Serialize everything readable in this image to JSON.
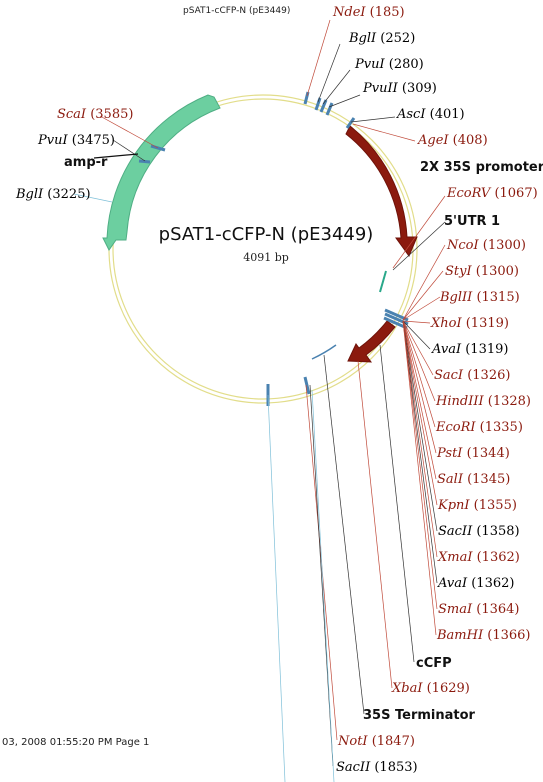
{
  "header": "pSAT1-cCFP-N (pE3449)",
  "plasmid": {
    "name": "pSAT1-cCFP-N (pE3449)",
    "size": "4091 bp"
  },
  "footer": "03, 2008 01:55:20 PM Page 1",
  "colors": {
    "promoter": "#8b1a0e",
    "amp": "#6ccfa0",
    "backbone": "#e8e49a",
    "unique": "#8b1a0e",
    "multi": "#000000",
    "site_tick": "#4a82b0"
  },
  "features": [
    "amp-r",
    "2X 35S promoter",
    "5'UTR 1",
    "cCFP",
    "35S Terminator"
  ],
  "sites": [
    {
      "name": "NdeI",
      "pos": "(185)",
      "unique": true
    },
    {
      "name": "BglI",
      "pos": "(252)",
      "unique": false
    },
    {
      "name": "PvuI",
      "pos": "(280)",
      "unique": false
    },
    {
      "name": "PvuII",
      "pos": "(309)",
      "unique": false
    },
    {
      "name": "AscI",
      "pos": "(401)",
      "unique": false
    },
    {
      "name": "AgeI",
      "pos": "(408)",
      "unique": true
    },
    {
      "name": "EcoRV",
      "pos": "(1067)",
      "unique": true
    },
    {
      "name": "NcoI",
      "pos": "(1300)",
      "unique": true
    },
    {
      "name": "StyI",
      "pos": "(1300)",
      "unique": true
    },
    {
      "name": "BglII",
      "pos": "(1315)",
      "unique": true
    },
    {
      "name": "XhoI",
      "pos": "(1319)",
      "unique": true
    },
    {
      "name": "AvaI",
      "pos": "(1319)",
      "unique": false
    },
    {
      "name": "SacI",
      "pos": "(1326)",
      "unique": true
    },
    {
      "name": "HindIII",
      "pos": "(1328)",
      "unique": true
    },
    {
      "name": "EcoRI",
      "pos": "(1335)",
      "unique": true
    },
    {
      "name": "PstI",
      "pos": "(1344)",
      "unique": true
    },
    {
      "name": "SalI",
      "pos": "(1345)",
      "unique": true
    },
    {
      "name": "KpnI",
      "pos": "(1355)",
      "unique": true
    },
    {
      "name": "SacII",
      "pos": "(1358)",
      "unique": false
    },
    {
      "name": "XmaI",
      "pos": "(1362)",
      "unique": true
    },
    {
      "name": "AvaI",
      "pos": "(1362)",
      "unique": false
    },
    {
      "name": "SmaI",
      "pos": "(1364)",
      "unique": true
    },
    {
      "name": "BamHI",
      "pos": "(1366)",
      "unique": true
    },
    {
      "name": "XbaI",
      "pos": "(1629)",
      "unique": true
    },
    {
      "name": "NotI",
      "pos": "(1847)",
      "unique": true
    },
    {
      "name": "SacII",
      "pos": "(1853)",
      "unique": false
    },
    {
      "name": "ScaI",
      "pos": "(3585)",
      "unique": true
    },
    {
      "name": "PvuI",
      "pos": "(3475)",
      "unique": false
    },
    {
      "name": "BglI",
      "pos": "(3225)",
      "unique": false
    }
  ]
}
